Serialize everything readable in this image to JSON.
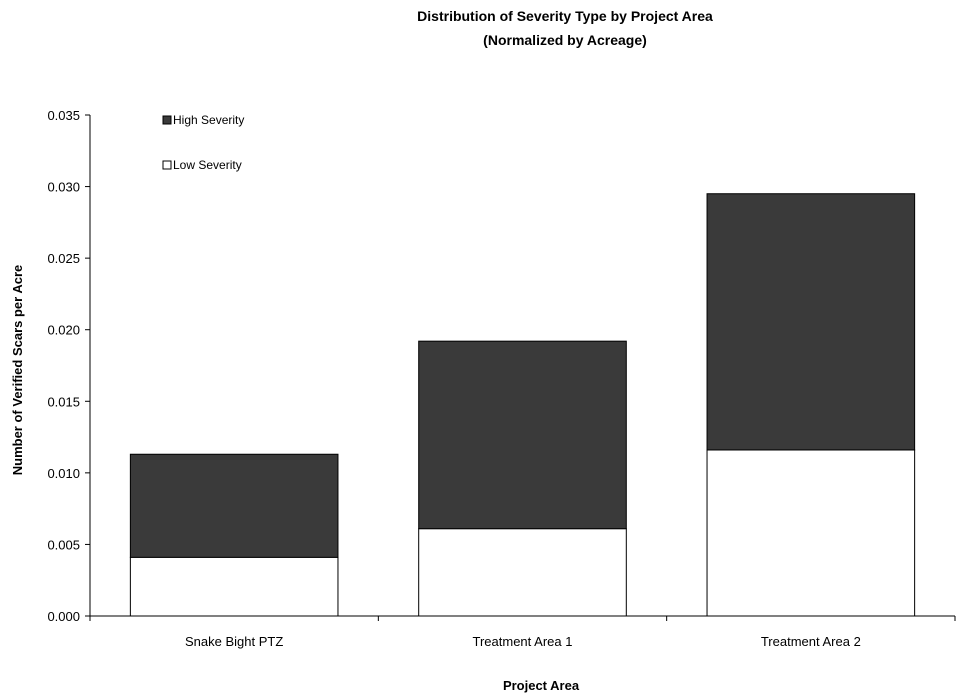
{
  "chart_data": {
    "type": "bar",
    "stacked": true,
    "title": "Distribution of Severity Type by Project Area",
    "subtitle": "(Normalized by Acreage)",
    "xlabel": "Project Area",
    "ylabel": "Number of Verified Scars per Acre",
    "categories": [
      "Snake Bight PTZ",
      "Treatment Area 1",
      "Treatment Area 2"
    ],
    "series": [
      {
        "name": "Low Severity",
        "values": [
          0.0041,
          0.0061,
          0.0116
        ],
        "color": "#ffffff"
      },
      {
        "name": "High Severity",
        "values": [
          0.0072,
          0.0131,
          0.0179
        ],
        "color": "#3a3a3a"
      }
    ],
    "ylim": [
      0,
      0.035
    ],
    "yticks": [
      "0.000",
      "0.005",
      "0.010",
      "0.015",
      "0.020",
      "0.025",
      "0.030",
      "0.035"
    ],
    "grid": false,
    "legend_position": "top-left"
  }
}
